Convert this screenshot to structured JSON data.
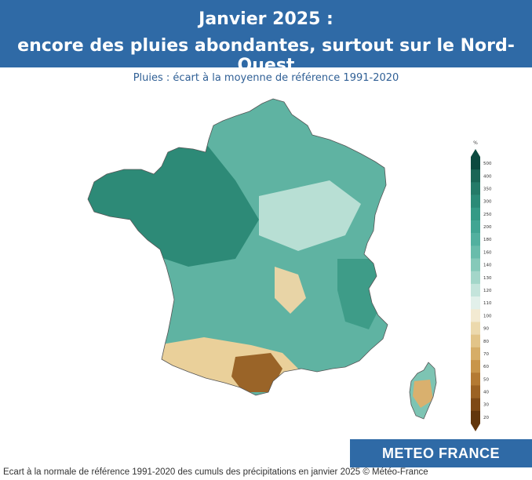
{
  "header": {
    "title_line1": "Janvier 2025 :",
    "title_line2": "encore des pluies abondantes, surtout sur le Nord-Ouest"
  },
  "subtitle": "Pluies : écart à la moyenne de référence 1991-2020",
  "legend": {
    "unit": "%",
    "labels": [
      "500",
      "400",
      "350",
      "300",
      "250",
      "200",
      "180",
      "160",
      "140",
      "130",
      "120",
      "110",
      "100",
      "90",
      "80",
      "70",
      "60",
      "50",
      "40",
      "30",
      "20"
    ],
    "colors": [
      "#0c4a40",
      "#1a6656",
      "#247a68",
      "#2b8a77",
      "#359a86",
      "#41a593",
      "#52b09f",
      "#69bcab",
      "#85c9b9",
      "#a3d6c9",
      "#c4e4db",
      "#e2f0ea",
      "#f3ead2",
      "#ecd9ad",
      "#e2c488",
      "#d6ad67",
      "#c8954a",
      "#b47a33",
      "#9c6223",
      "#7f4a16",
      "#62360c"
    ]
  },
  "map": {
    "regions": [
      "France",
      "Corse"
    ]
  },
  "logo": {
    "text": "METEO FRANCE"
  },
  "caption": "Ecart à la normale de référence 1991-2020 des cumuls des précipitations en janvier 2025 © Météo-France"
}
